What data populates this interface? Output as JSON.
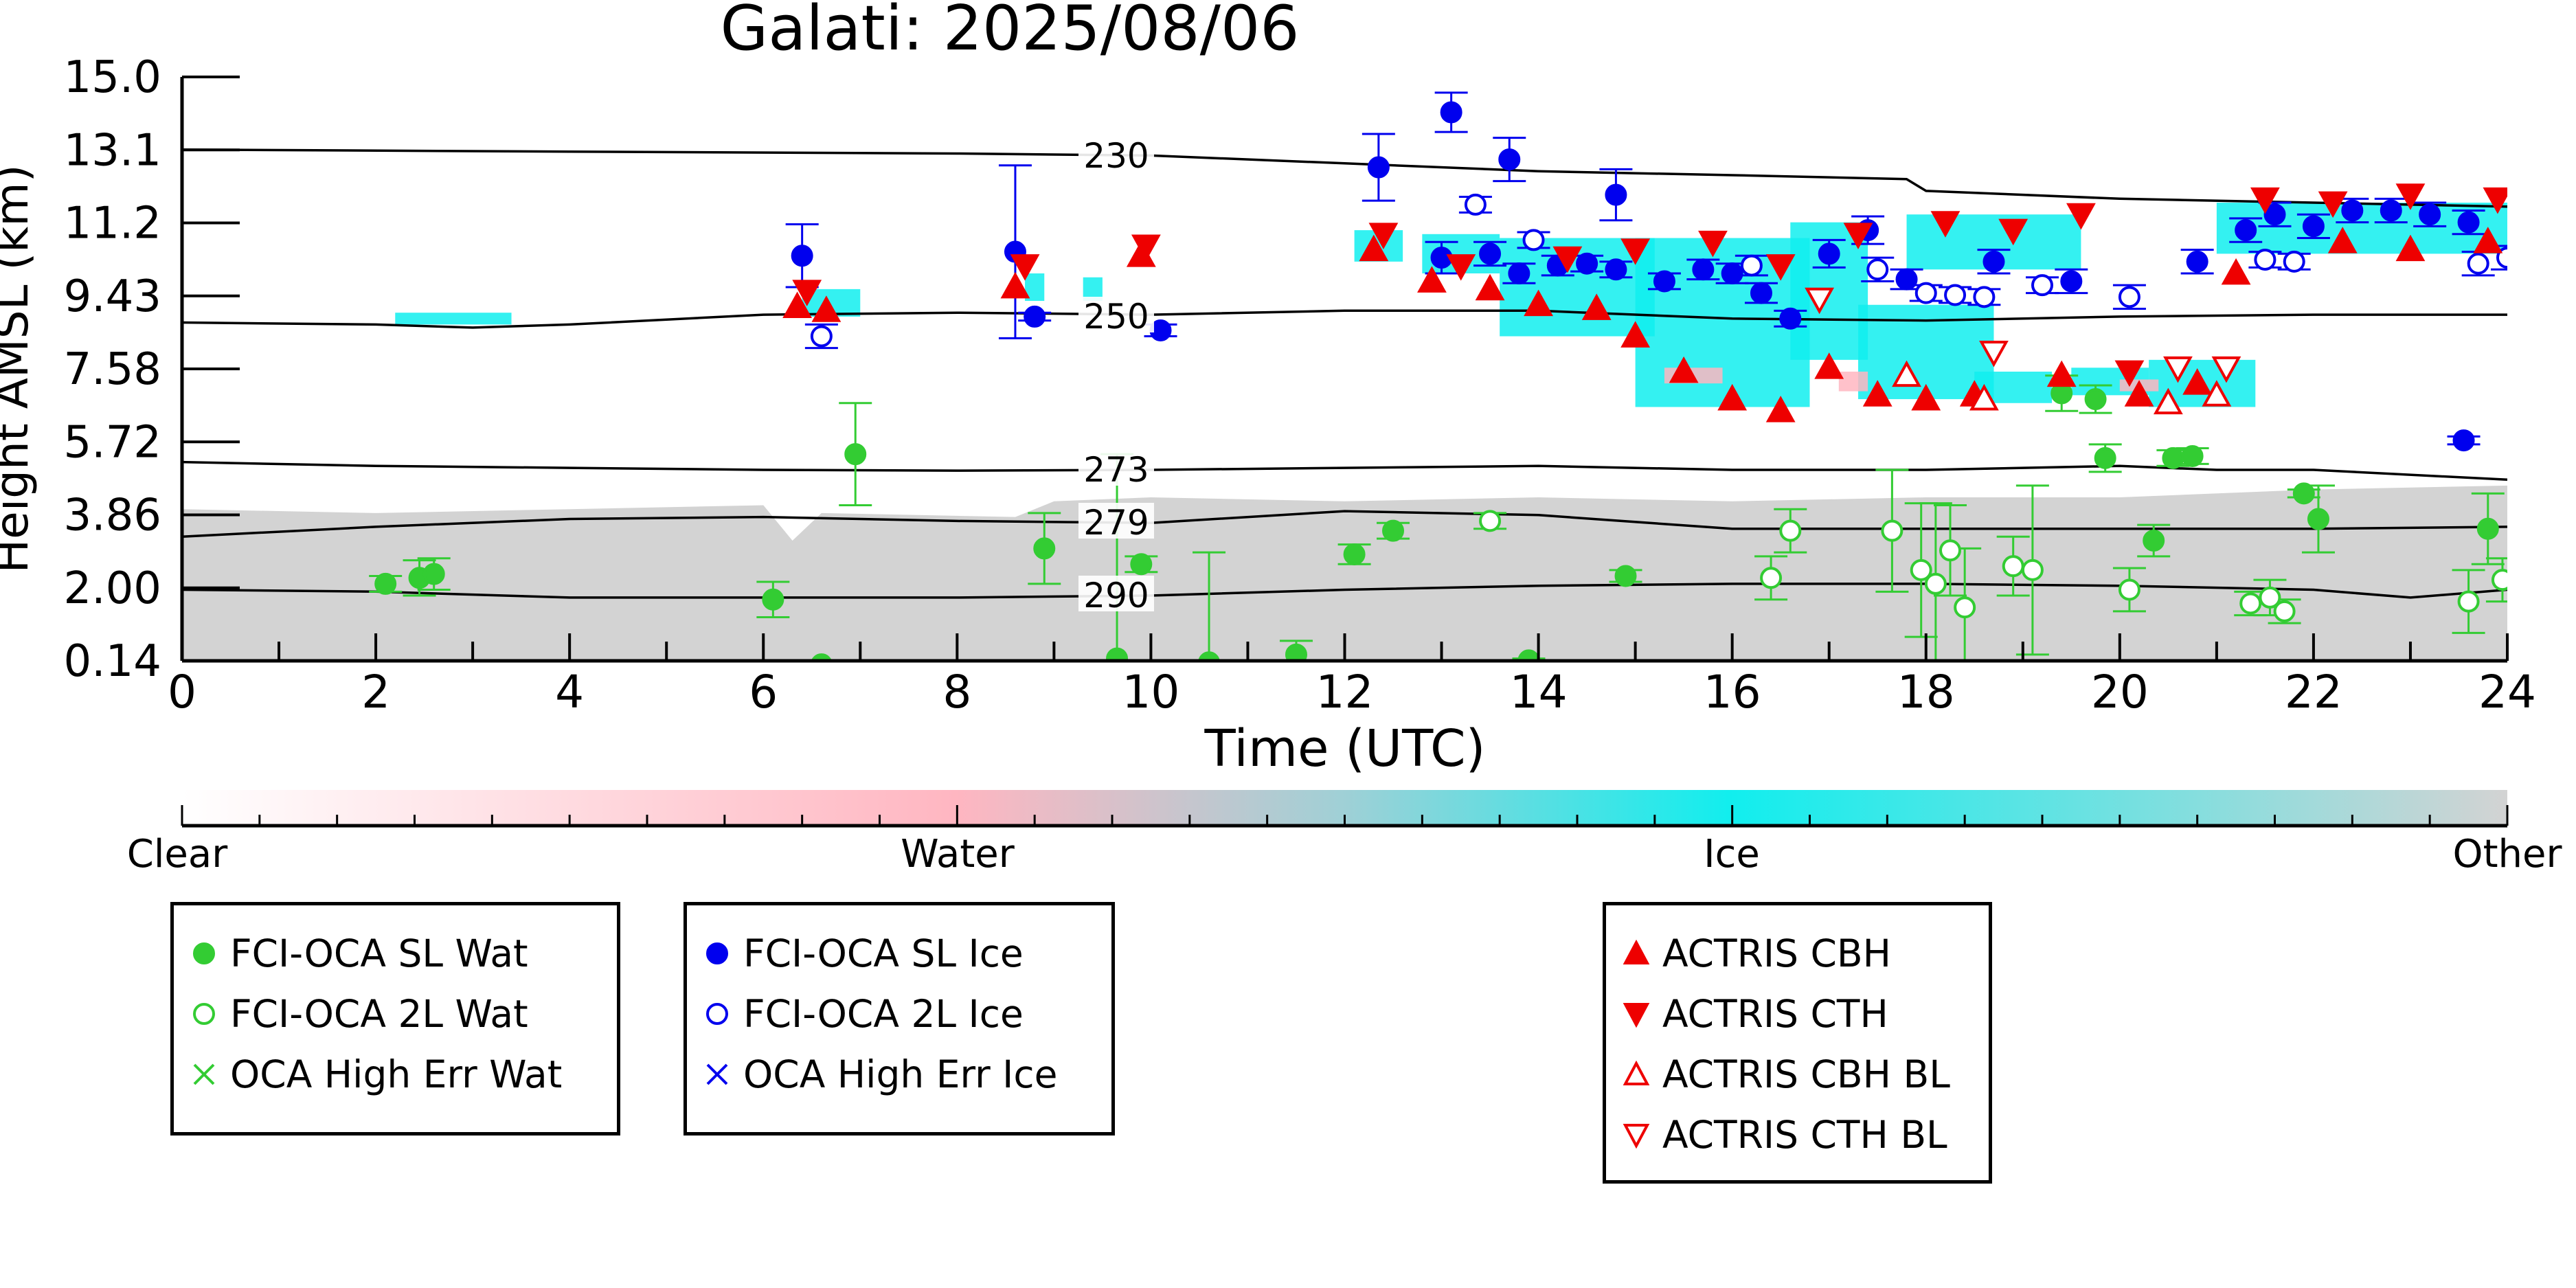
{
  "chart_data": {
    "type": "scatter",
    "title": "Galati: 2025/08/06",
    "xlabel": "Time (UTC)",
    "ylabel": "Height AMSL (km)",
    "xlim": [
      0,
      24
    ],
    "ylim": [
      0.14,
      15.0
    ],
    "xticks": [
      "0",
      "2",
      "4",
      "6",
      "8",
      "10",
      "12",
      "14",
      "16",
      "18",
      "20",
      "22",
      "24"
    ],
    "yticks": [
      "0.14",
      "2.00",
      "3.86",
      "5.72",
      "7.58",
      "9.43",
      "11.2",
      "13.1",
      "15.0"
    ],
    "colors": {
      "water": "#33cc33",
      "ice": "#0000ee",
      "actris": "#ee0000",
      "cloud_ice": "#11eeee",
      "cloud_water": "#ffb6c1",
      "other": "#d3d3d3"
    },
    "contours": [
      {
        "label": "230",
        "x": [
          0,
          4,
          8,
          10,
          12,
          14,
          16,
          17.8,
          18,
          20,
          22,
          24
        ],
        "y": [
          13.15,
          13.1,
          13.05,
          13.0,
          12.8,
          12.6,
          12.5,
          12.4,
          12.1,
          11.9,
          11.8,
          11.7
        ]
      },
      {
        "label": "250",
        "x": [
          0,
          2,
          3,
          4,
          6,
          8,
          10,
          12,
          14,
          16,
          18,
          20,
          22,
          24
        ],
        "y": [
          8.75,
          8.7,
          8.62,
          8.7,
          8.95,
          9.0,
          8.95,
          9.05,
          9.05,
          8.85,
          8.8,
          8.9,
          8.95,
          8.95
        ]
      },
      {
        "label": "273",
        "x": [
          0,
          2,
          4,
          6,
          8,
          10,
          12,
          14,
          16,
          18,
          20,
          21,
          22,
          24
        ],
        "y": [
          5.2,
          5.1,
          5.05,
          5.0,
          4.98,
          5.0,
          5.05,
          5.1,
          5.0,
          5.0,
          5.1,
          5.0,
          5.0,
          4.75
        ]
      },
      {
        "label": "279",
        "x": [
          0,
          2,
          4,
          6,
          8,
          10,
          12,
          14,
          16,
          18,
          20,
          22,
          24
        ],
        "y": [
          3.3,
          3.55,
          3.75,
          3.8,
          3.7,
          3.65,
          3.95,
          3.85,
          3.5,
          3.5,
          3.5,
          3.5,
          3.55
        ]
      },
      {
        "label": "290",
        "x": [
          0,
          2,
          4,
          6,
          8,
          10,
          12,
          14,
          16,
          18,
          20,
          22,
          23,
          24
        ],
        "y": [
          1.95,
          1.9,
          1.75,
          1.75,
          1.75,
          1.8,
          1.95,
          2.05,
          2.1,
          2.1,
          2.05,
          1.95,
          1.75,
          1.95
        ]
      }
    ],
    "series": [
      {
        "name": "FCI-OCA SL Wat",
        "points": [
          [
            2.1,
            2.1,
            0.2
          ],
          [
            2.45,
            2.25,
            0.45
          ],
          [
            2.6,
            2.35,
            0.4
          ],
          [
            6.1,
            1.7,
            0.45
          ],
          [
            6.6,
            0.05,
            0
          ],
          [
            6.95,
            5.4,
            1.3
          ],
          [
            8.9,
            3.0,
            0.9
          ],
          [
            9.65,
            0.2,
            5.2
          ],
          [
            9.9,
            2.6,
            0.2
          ],
          [
            10.6,
            0.1,
            2.8
          ],
          [
            11.5,
            0.3,
            0.35
          ],
          [
            12.1,
            2.85,
            0.25
          ],
          [
            12.5,
            3.45,
            0.2
          ],
          [
            13.9,
            0.15,
            0.05
          ],
          [
            14.9,
            2.3,
            0.15
          ],
          [
            19.4,
            6.95,
            0.45
          ],
          [
            19.85,
            5.3,
            0.35
          ],
          [
            19.75,
            6.8,
            0.35
          ],
          [
            20.35,
            3.2,
            0.4
          ],
          [
            20.55,
            5.3,
            0.2
          ],
          [
            20.75,
            5.35,
            0.2
          ],
          [
            21.9,
            4.4,
            0.1
          ],
          [
            22.05,
            3.75,
            0.85
          ],
          [
            23.8,
            3.5,
            0.9
          ]
        ]
      },
      {
        "name": "FCI-OCA 2L Wat",
        "points": [
          [
            13.5,
            3.7,
            0.2
          ],
          [
            16.4,
            2.25,
            0.55
          ],
          [
            16.6,
            3.45,
            0.55
          ],
          [
            17.65,
            3.45,
            1.55
          ],
          [
            17.95,
            2.45,
            1.7
          ],
          [
            18.1,
            2.1,
            2.05
          ],
          [
            18.25,
            2.95,
            1.15
          ],
          [
            18.4,
            1.5,
            1.5
          ],
          [
            18.9,
            2.55,
            0.75
          ],
          [
            19.1,
            2.45,
            2.15
          ],
          [
            20.1,
            1.95,
            0.55
          ],
          [
            21.35,
            1.6,
            0.3
          ],
          [
            21.55,
            1.75,
            0.45
          ],
          [
            21.7,
            1.4,
            0.3
          ],
          [
            23.6,
            1.65,
            0.8
          ],
          [
            23.95,
            2.2,
            0.55
          ]
        ]
      },
      {
        "name": "FCI-OCA SL Ice",
        "points": [
          [
            6.4,
            10.45,
            0.8
          ],
          [
            8.6,
            10.55,
            2.2
          ],
          [
            8.8,
            8.9,
            0.1
          ],
          [
            10.1,
            8.55,
            0.15
          ],
          [
            12.35,
            12.7,
            0.85
          ],
          [
            13.1,
            14.1,
            0.5
          ],
          [
            13.7,
            12.9,
            0.55
          ],
          [
            14.8,
            12.0,
            0.65
          ],
          [
            13.0,
            10.4,
            0.4
          ],
          [
            13.5,
            10.5,
            0.3
          ],
          [
            13.8,
            10.0,
            0.25
          ],
          [
            14.2,
            10.2,
            0.25
          ],
          [
            14.5,
            10.25,
            0.2
          ],
          [
            14.8,
            10.1,
            0.2
          ],
          [
            15.3,
            9.8,
            0.2
          ],
          [
            15.7,
            10.1,
            0.25
          ],
          [
            16.0,
            10.0,
            0.25
          ],
          [
            16.3,
            9.5,
            0.25
          ],
          [
            16.6,
            8.85,
            0.2
          ],
          [
            17.0,
            10.5,
            0.35
          ],
          [
            17.4,
            11.1,
            0.35
          ],
          [
            17.8,
            9.85,
            0.25
          ],
          [
            18.7,
            10.3,
            0.3
          ],
          [
            19.5,
            9.8,
            0.3
          ],
          [
            20.8,
            10.3,
            0.3
          ],
          [
            21.3,
            11.1,
            0.3
          ],
          [
            21.6,
            11.5,
            0.3
          ],
          [
            22.0,
            11.2,
            0.3
          ],
          [
            22.4,
            11.6,
            0.3
          ],
          [
            22.8,
            11.6,
            0.3
          ],
          [
            23.2,
            11.5,
            0.3
          ],
          [
            23.55,
            5.75,
            0.1
          ],
          [
            23.6,
            11.3,
            0.3
          ]
        ]
      },
      {
        "name": "FCI-OCA 2L Ice",
        "points": [
          [
            6.6,
            8.4,
            0.3
          ],
          [
            13.35,
            11.75,
            0.2
          ],
          [
            13.95,
            10.85,
            0.2
          ],
          [
            16.2,
            10.2,
            0.25
          ],
          [
            17.5,
            10.1,
            0.3
          ],
          [
            18.0,
            9.5,
            0.2
          ],
          [
            18.3,
            9.45,
            0.2
          ],
          [
            18.6,
            9.4,
            0.2
          ],
          [
            19.2,
            9.7,
            0.2
          ],
          [
            20.1,
            9.4,
            0.3
          ],
          [
            21.5,
            10.35,
            0.2
          ],
          [
            21.8,
            10.3,
            0.2
          ],
          [
            23.7,
            10.25,
            0.3
          ],
          [
            24.0,
            10.4,
            0.3
          ]
        ]
      },
      {
        "name": "ACTRIS CBH",
        "points": [
          [
            6.35,
            9.15,
            0
          ],
          [
            6.65,
            9.05,
            0
          ],
          [
            8.6,
            9.65,
            0
          ],
          [
            9.9,
            10.45,
            0
          ],
          [
            12.3,
            10.6,
            0
          ],
          [
            12.9,
            9.8,
            0
          ],
          [
            13.5,
            9.6,
            0
          ],
          [
            14.0,
            9.2,
            0
          ],
          [
            14.6,
            9.1,
            0
          ],
          [
            15.0,
            8.4,
            0
          ],
          [
            15.5,
            7.5,
            0
          ],
          [
            16.0,
            6.8,
            0
          ],
          [
            16.5,
            6.5,
            0
          ],
          [
            17.0,
            7.6,
            0
          ],
          [
            17.5,
            6.9,
            0
          ],
          [
            18.0,
            6.8,
            0
          ],
          [
            18.5,
            6.9,
            0
          ],
          [
            19.4,
            7.4,
            0
          ],
          [
            20.2,
            6.9,
            0
          ],
          [
            20.8,
            7.2,
            0
          ],
          [
            21.2,
            10.0,
            0
          ],
          [
            22.3,
            10.8,
            0
          ],
          [
            23.0,
            10.6,
            0
          ],
          [
            23.8,
            10.8,
            0
          ]
        ]
      },
      {
        "name": "ACTRIS CTH",
        "points": [
          [
            6.45,
            9.55,
            0
          ],
          [
            8.7,
            10.2,
            0
          ],
          [
            9.95,
            10.7,
            0
          ],
          [
            12.4,
            11.0,
            0
          ],
          [
            13.2,
            10.2,
            0
          ],
          [
            14.3,
            10.4,
            0
          ],
          [
            15.0,
            10.6,
            0
          ],
          [
            15.8,
            10.8,
            0
          ],
          [
            16.5,
            10.2,
            0
          ],
          [
            17.3,
            11.0,
            0
          ],
          [
            18.2,
            11.3,
            0
          ],
          [
            18.9,
            11.1,
            0
          ],
          [
            19.6,
            11.5,
            0
          ],
          [
            20.1,
            7.5,
            0
          ],
          [
            21.5,
            11.9,
            0
          ],
          [
            22.2,
            11.8,
            0
          ],
          [
            23.0,
            12.0,
            0
          ],
          [
            23.9,
            11.9,
            0
          ]
        ]
      },
      {
        "name": "ACTRIS CBH BL",
        "points": [
          [
            17.8,
            7.4,
            0
          ],
          [
            18.6,
            6.8,
            0
          ],
          [
            20.5,
            6.7,
            0
          ],
          [
            21.0,
            6.9,
            0
          ]
        ]
      },
      {
        "name": "ACTRIS CTH BL",
        "points": [
          [
            16.9,
            9.35,
            0
          ],
          [
            18.7,
            8.0,
            0
          ],
          [
            20.6,
            7.6,
            0
          ],
          [
            21.1,
            7.6,
            0
          ]
        ]
      }
    ],
    "colorbar": {
      "labels": [
        "Clear",
        "Water",
        "Ice",
        "Other"
      ]
    },
    "legends": [
      {
        "entries": [
          {
            "label": "FCI-OCA SL Wat",
            "marker": "filled-circle",
            "color": "#33cc33"
          },
          {
            "label": "FCI-OCA 2L Wat",
            "marker": "open-circle",
            "color": "#33cc33"
          },
          {
            "label": "OCA High Err Wat",
            "marker": "x",
            "color": "#33cc33"
          }
        ]
      },
      {
        "entries": [
          {
            "label": "FCI-OCA SL Ice",
            "marker": "filled-circle",
            "color": "#0000ee"
          },
          {
            "label": "FCI-OCA 2L Ice",
            "marker": "open-circle",
            "color": "#0000ee"
          },
          {
            "label": "OCA High Err Ice",
            "marker": "x",
            "color": "#0000ee"
          }
        ]
      },
      {
        "entries": [
          {
            "label": "ACTRIS CBH",
            "marker": "filled-triangle-up",
            "color": "#ee0000"
          },
          {
            "label": "ACTRIS CTH",
            "marker": "filled-triangle-down",
            "color": "#ee0000"
          },
          {
            "label": "ACTRIS CBH BL",
            "marker": "open-triangle-up",
            "color": "#ee0000"
          },
          {
            "label": "ACTRIS CTH BL",
            "marker": "open-triangle-down",
            "color": "#ee0000"
          }
        ]
      }
    ]
  }
}
